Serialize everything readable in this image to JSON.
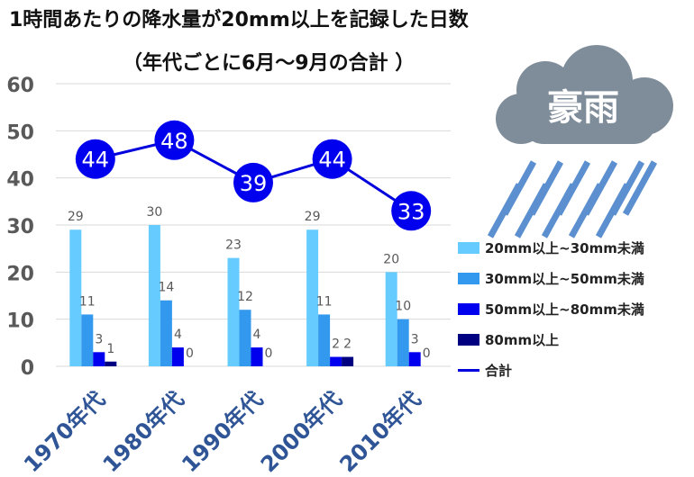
{
  "header": {
    "title": "1時間あたりの降水量が20mm以上を記録した日数",
    "subtitle": "（年代ごとに6月～9月の合計 ）"
  },
  "badge": {
    "text": "豪雨"
  },
  "colors": {
    "series": [
      "#66ccff",
      "#3399ee",
      "#0000ee",
      "#000080"
    ],
    "total_line": "#0000dd",
    "total_marker": "#0000ee",
    "grid": "#d9d9d9",
    "axis_text": "#595959",
    "x_text": "#2f5597",
    "cloud": "#7f8c99",
    "rain": "#5b8fd0"
  },
  "chart_data": {
    "type": "bar",
    "title": "1時間あたりの降水量が20mm以上を記録した日数",
    "subtitle": "（年代ごとに6月～9月の合計 ）",
    "categories": [
      "1970年代",
      "1980年代",
      "1990年代",
      "2000年代",
      "2010年代"
    ],
    "series": [
      {
        "name": "20mm以上~30mm未満",
        "values": [
          29,
          30,
          23,
          29,
          20
        ]
      },
      {
        "name": "30mm以上~50mm未満",
        "values": [
          11,
          14,
          12,
          11,
          10
        ]
      },
      {
        "name": "50mm以上~80mm未満",
        "values": [
          3,
          4,
          4,
          2,
          3
        ]
      },
      {
        "name": "80mm以上",
        "values": [
          1,
          0,
          0,
          2,
          0
        ]
      }
    ],
    "total": {
      "name": "合計",
      "type": "line",
      "values": [
        44,
        48,
        39,
        44,
        33
      ]
    },
    "yticks": [
      0,
      10,
      20,
      30,
      40,
      50,
      60
    ],
    "ylim": [
      0,
      60
    ],
    "xlabel": "",
    "ylabel": "",
    "grid": true,
    "legend": "right"
  }
}
